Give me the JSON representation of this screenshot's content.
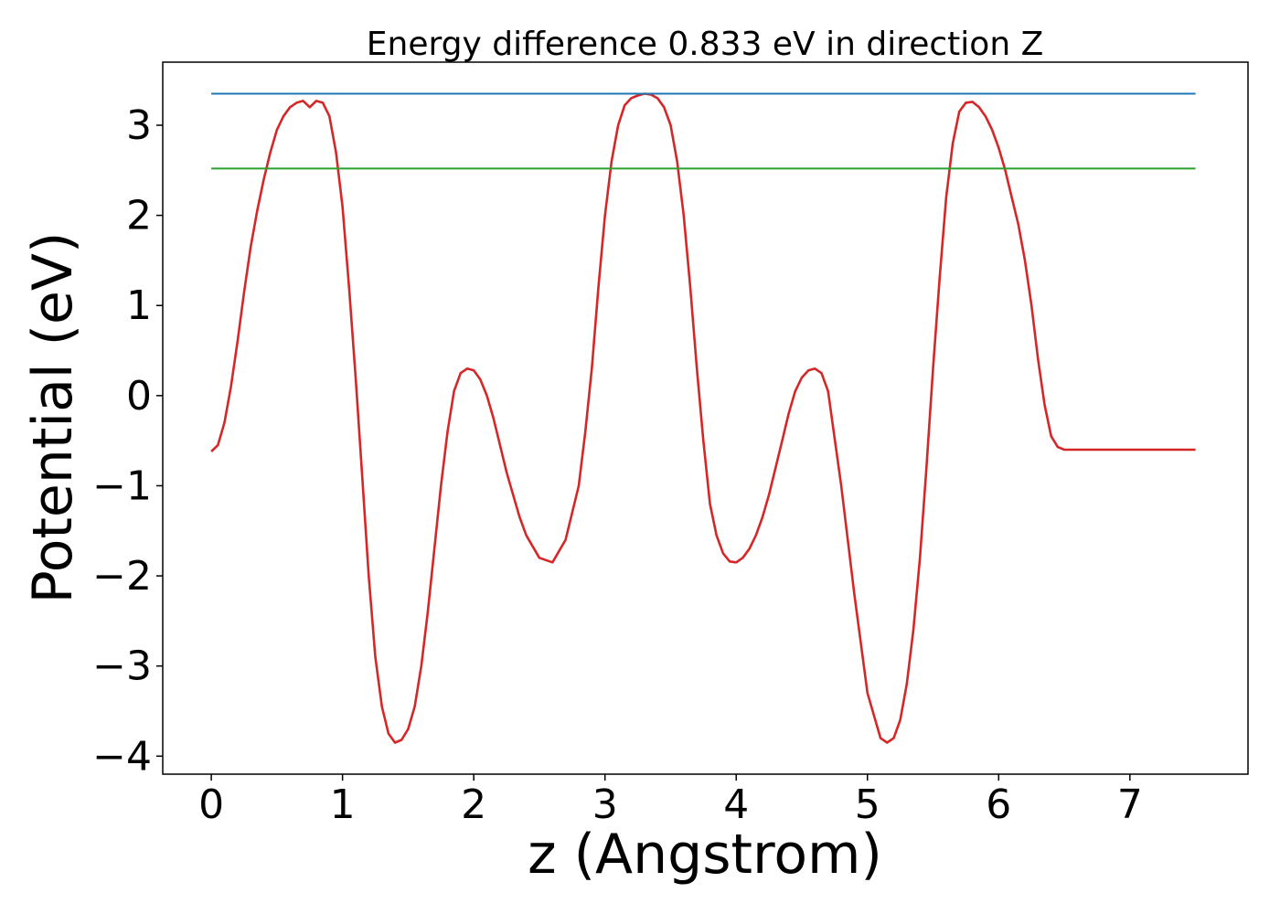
{
  "chart_data": {
    "type": "line",
    "title": "Energy difference 0.833 eV in direction Z",
    "xlabel": "z (Angstrom)",
    "ylabel": "Potential (eV)",
    "xlim": [
      -0.37,
      7.9
    ],
    "ylim": [
      -4.2,
      3.7
    ],
    "xticks": [
      0,
      1,
      2,
      3,
      4,
      5,
      6,
      7
    ],
    "yticks": [
      -4,
      -3,
      -2,
      -1,
      0,
      1,
      2,
      3
    ],
    "xtick_labels": [
      "0",
      "1",
      "2",
      "3",
      "4",
      "5",
      "6",
      "7"
    ],
    "ytick_labels": [
      "−4",
      "−3",
      "−2",
      "−1",
      "0",
      "1",
      "2",
      "3"
    ],
    "grid": false,
    "series": [
      {
        "color": "#d62728",
        "x": [
          0,
          0.05,
          0.1,
          0.15,
          0.2,
          0.25,
          0.3,
          0.35,
          0.4,
          0.45,
          0.5,
          0.55,
          0.6,
          0.65,
          0.7,
          0.75,
          0.8,
          0.85,
          0.9,
          0.95,
          1.0,
          1.05,
          1.1,
          1.15,
          1.2,
          1.25,
          1.3,
          1.35,
          1.4,
          1.45,
          1.5,
          1.55,
          1.6,
          1.65,
          1.7,
          1.75,
          1.8,
          1.85,
          1.9,
          1.95,
          2.0,
          2.05,
          2.1,
          2.15,
          2.2,
          2.25,
          2.3,
          2.35,
          2.4,
          2.5,
          2.6,
          2.7,
          2.8,
          2.85,
          2.9,
          2.95,
          3.0,
          3.05,
          3.1,
          3.15,
          3.2,
          3.25,
          3.3,
          3.35,
          3.4,
          3.45,
          3.5,
          3.55,
          3.6,
          3.65,
          3.7,
          3.75,
          3.8,
          3.85,
          3.9,
          3.95,
          4.0,
          4.05,
          4.1,
          4.15,
          4.2,
          4.25,
          4.3,
          4.35,
          4.4,
          4.45,
          4.5,
          4.55,
          4.6,
          4.65,
          4.7,
          4.8,
          4.9,
          5.0,
          5.1,
          5.15,
          5.2,
          5.25,
          5.3,
          5.35,
          5.4,
          5.45,
          5.5,
          5.55,
          5.6,
          5.65,
          5.7,
          5.75,
          5.8,
          5.85,
          5.9,
          5.95,
          6.0,
          6.05,
          6.1,
          6.15,
          6.2,
          6.25,
          6.3,
          6.35,
          6.4,
          6.45,
          6.5,
          6.55,
          6.6,
          6.65,
          6.7,
          6.75,
          6.8,
          6.85,
          6.9,
          6.95,
          7.0,
          7.05,
          7.1,
          7.15,
          7.2,
          7.25,
          7.3,
          7.35,
          7.4,
          7.45,
          7.5
        ],
        "values": [
          -0.62,
          -0.55,
          -0.3,
          0.1,
          0.6,
          1.15,
          1.65,
          2.05,
          2.4,
          2.7,
          2.95,
          3.1,
          3.2,
          3.25,
          3.27,
          3.2,
          3.27,
          3.25,
          3.1,
          2.7,
          2.1,
          1.2,
          0.2,
          -0.9,
          -2.0,
          -2.9,
          -3.45,
          -3.75,
          -3.85,
          -3.82,
          -3.7,
          -3.45,
          -3.0,
          -2.4,
          -1.7,
          -1.0,
          -0.4,
          0.05,
          0.25,
          0.3,
          0.28,
          0.18,
          0.0,
          -0.25,
          -0.55,
          -0.85,
          -1.1,
          -1.35,
          -1.55,
          -1.8,
          -1.85,
          -1.6,
          -1.0,
          -0.4,
          0.3,
          1.2,
          2.0,
          2.6,
          3.0,
          3.22,
          3.3,
          3.33,
          3.35,
          3.34,
          3.3,
          3.2,
          3.0,
          2.6,
          2.0,
          1.2,
          0.3,
          -0.5,
          -1.2,
          -1.55,
          -1.75,
          -1.84,
          -1.85,
          -1.8,
          -1.7,
          -1.55,
          -1.35,
          -1.1,
          -0.8,
          -0.5,
          -0.2,
          0.05,
          0.2,
          0.28,
          0.3,
          0.25,
          0.05,
          -1.0,
          -2.2,
          -3.3,
          -3.8,
          -3.85,
          -3.8,
          -3.6,
          -3.2,
          -2.6,
          -1.8,
          -0.8,
          0.3,
          1.3,
          2.2,
          2.8,
          3.15,
          3.25,
          3.26,
          3.2,
          3.1,
          2.95,
          2.75,
          2.5,
          2.2,
          1.9,
          1.5,
          1.0,
          0.4,
          -0.1,
          -0.45,
          -0.57,
          -0.6,
          -0.6,
          -0.6,
          -0.6,
          -0.6,
          -0.6,
          -0.6,
          -0.6,
          -0.6,
          -0.6,
          -0.6,
          -0.6,
          -0.6,
          -0.6,
          -0.6,
          -0.6,
          -0.6,
          -0.6,
          -0.6,
          -0.6,
          -0.6
        ]
      },
      {
        "color": "#1f77b4",
        "x": [
          0,
          7.5
        ],
        "values": [
          3.35,
          3.35
        ]
      },
      {
        "color": "#2ca02c",
        "x": [
          0,
          7.5
        ],
        "values": [
          2.52,
          2.52
        ]
      }
    ]
  }
}
